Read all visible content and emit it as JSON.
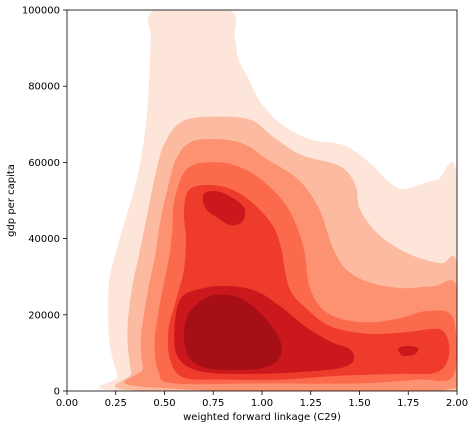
{
  "chart_data": {
    "type": "kde-filled-contour",
    "title": "",
    "xlabel": "weighted forward linkage (C29)",
    "ylabel": "gdp per capita",
    "xlim": [
      0.0,
      2.0
    ],
    "ylim": [
      0,
      100000
    ],
    "x_ticks": [
      0.0,
      0.25,
      0.5,
      0.75,
      1.0,
      1.25,
      1.5,
      1.75,
      2.0
    ],
    "x_tick_labels": [
      "0.00",
      "0.25",
      "0.50",
      "0.75",
      "1.00",
      "1.25",
      "1.50",
      "1.75",
      "2.00"
    ],
    "y_ticks": [
      0,
      20000,
      40000,
      60000,
      80000,
      100000
    ],
    "y_tick_labels": [
      "0",
      "20000",
      "40000",
      "60000",
      "80000",
      "100000"
    ],
    "grid": false,
    "legend": "none",
    "colormap": "Reds",
    "levels": [
      {
        "color": "#fee5d9",
        "points": [
          [
            0.45,
            100000
          ],
          [
            0.83,
            100000
          ],
          [
            0.86,
            93000
          ],
          [
            0.88,
            87000
          ],
          [
            0.93,
            82000
          ],
          [
            0.99,
            76000
          ],
          [
            1.1,
            70000
          ],
          [
            1.25,
            66000
          ],
          [
            1.42,
            64500
          ],
          [
            1.55,
            60000
          ],
          [
            1.65,
            55000
          ],
          [
            1.72,
            53000
          ],
          [
            1.8,
            54000
          ],
          [
            1.9,
            55500
          ],
          [
            2.0,
            56000
          ],
          [
            2.0,
            0
          ],
          [
            0.3,
            0
          ],
          [
            0.26,
            4000
          ],
          [
            0.22,
            12000
          ],
          [
            0.21,
            22000
          ],
          [
            0.22,
            30000
          ],
          [
            0.26,
            38000
          ],
          [
            0.3,
            45000
          ],
          [
            0.36,
            56000
          ],
          [
            0.4,
            68000
          ],
          [
            0.42,
            80000
          ],
          [
            0.43,
            92000
          ]
        ]
      },
      {
        "color": "#fcbba1",
        "points": [
          [
            0.6,
            71000
          ],
          [
            0.8,
            72000
          ],
          [
            0.95,
            71000
          ],
          [
            1.05,
            67000
          ],
          [
            1.2,
            62000
          ],
          [
            1.4,
            59000
          ],
          [
            1.48,
            54000
          ],
          [
            1.5,
            48000
          ],
          [
            1.58,
            42000
          ],
          [
            1.68,
            38000
          ],
          [
            1.8,
            35000
          ],
          [
            1.92,
            33500
          ],
          [
            2.0,
            33000
          ],
          [
            2.0,
            0
          ],
          [
            0.38,
            0
          ],
          [
            0.33,
            5000
          ],
          [
            0.31,
            15000
          ],
          [
            0.33,
            26000
          ],
          [
            0.37,
            36000
          ],
          [
            0.41,
            46000
          ],
          [
            0.45,
            56000
          ],
          [
            0.5,
            65000
          ]
        ]
      },
      {
        "color": "#fc9272",
        "points": [
          [
            0.64,
            65500
          ],
          [
            0.8,
            66000
          ],
          [
            0.92,
            64500
          ],
          [
            1.02,
            61000
          ],
          [
            1.15,
            57000
          ],
          [
            1.23,
            53000
          ],
          [
            1.3,
            47000
          ],
          [
            1.36,
            38000
          ],
          [
            1.43,
            32000
          ],
          [
            1.55,
            28500
          ],
          [
            1.72,
            27000
          ],
          [
            1.88,
            27500
          ],
          [
            2.0,
            27000
          ],
          [
            2.0,
            1000
          ],
          [
            0.42,
            1000
          ],
          [
            0.39,
            6000
          ],
          [
            0.38,
            14000
          ],
          [
            0.41,
            25000
          ],
          [
            0.45,
            35000
          ],
          [
            0.48,
            45000
          ],
          [
            0.52,
            54000
          ],
          [
            0.56,
            61000
          ]
        ]
      },
      {
        "color": "#fb6a4a",
        "points": [
          [
            0.62,
            58500
          ],
          [
            0.78,
            60000
          ],
          [
            0.92,
            58000
          ],
          [
            1.03,
            54000
          ],
          [
            1.12,
            49000
          ],
          [
            1.18,
            43000
          ],
          [
            1.22,
            36000
          ],
          [
            1.24,
            28000
          ],
          [
            1.3,
            22000
          ],
          [
            1.4,
            19000
          ],
          [
            1.55,
            18000
          ],
          [
            1.7,
            19000
          ],
          [
            1.85,
            21000
          ],
          [
            1.98,
            19000
          ],
          [
            1.98,
            4000
          ],
          [
            1.8,
            3000
          ],
          [
            1.5,
            2000
          ],
          [
            1.0,
            2000
          ],
          [
            0.55,
            2000
          ],
          [
            0.47,
            5000
          ],
          [
            0.45,
            13000
          ],
          [
            0.48,
            24000
          ],
          [
            0.52,
            34000
          ],
          [
            0.54,
            42000
          ],
          [
            0.55,
            50000
          ]
        ]
      },
      {
        "color": "#ef3b2c",
        "points": [
          [
            0.63,
            53000
          ],
          [
            0.76,
            54000
          ],
          [
            0.88,
            52000
          ],
          [
            0.98,
            48000
          ],
          [
            1.06,
            43000
          ],
          [
            1.1,
            37000
          ],
          [
            1.12,
            31000
          ],
          [
            1.15,
            26000
          ],
          [
            1.22,
            22000
          ],
          [
            1.35,
            17000
          ],
          [
            1.55,
            15000
          ],
          [
            1.75,
            15500
          ],
          [
            1.92,
            16000
          ],
          [
            1.96,
            10000
          ],
          [
            1.9,
            5000
          ],
          [
            1.7,
            4500
          ],
          [
            1.4,
            4000
          ],
          [
            1.1,
            3000
          ],
          [
            0.8,
            3000
          ],
          [
            0.6,
            3500
          ],
          [
            0.53,
            8000
          ],
          [
            0.52,
            16000
          ],
          [
            0.56,
            24000
          ],
          [
            0.6,
            32000
          ],
          [
            0.61,
            40000
          ],
          [
            0.6,
            47000
          ]
        ]
      },
      {
        "color": "#cb181d",
        "points": [
          [
            0.58,
            24000
          ],
          [
            0.7,
            27000
          ],
          [
            0.85,
            27500
          ],
          [
            0.98,
            26000
          ],
          [
            1.1,
            22000
          ],
          [
            1.22,
            17000
          ],
          [
            1.35,
            13000
          ],
          [
            1.45,
            11000
          ],
          [
            1.47,
            8000
          ],
          [
            1.4,
            6000
          ],
          [
            1.2,
            5000
          ],
          [
            0.95,
            4500
          ],
          [
            0.7,
            5000
          ],
          [
            0.58,
            8000
          ],
          [
            0.55,
            14000
          ]
        ]
      },
      {
        "color": "#cb181d",
        "points": [
          [
            0.7,
            51500
          ],
          [
            0.76,
            52500
          ],
          [
            0.84,
            51000
          ],
          [
            0.91,
            48000
          ],
          [
            0.9,
            44500
          ],
          [
            0.84,
            43500
          ],
          [
            0.77,
            45500
          ],
          [
            0.71,
            48000
          ]
        ]
      },
      {
        "color": "#cb181d",
        "points": [
          [
            1.7,
            11200
          ],
          [
            1.75,
            11800
          ],
          [
            1.8,
            11200
          ],
          [
            1.78,
            9500
          ],
          [
            1.72,
            9300
          ]
        ]
      },
      {
        "color": "#a50f15",
        "points": [
          [
            0.62,
            20000
          ],
          [
            0.7,
            24000
          ],
          [
            0.78,
            25300
          ],
          [
            0.88,
            24500
          ],
          [
            0.97,
            21500
          ],
          [
            1.05,
            17000
          ],
          [
            1.1,
            12000
          ],
          [
            1.08,
            8000
          ],
          [
            1.0,
            6000
          ],
          [
            0.86,
            5500
          ],
          [
            0.72,
            6000
          ],
          [
            0.63,
            8500
          ],
          [
            0.6,
            14000
          ]
        ]
      }
    ]
  }
}
